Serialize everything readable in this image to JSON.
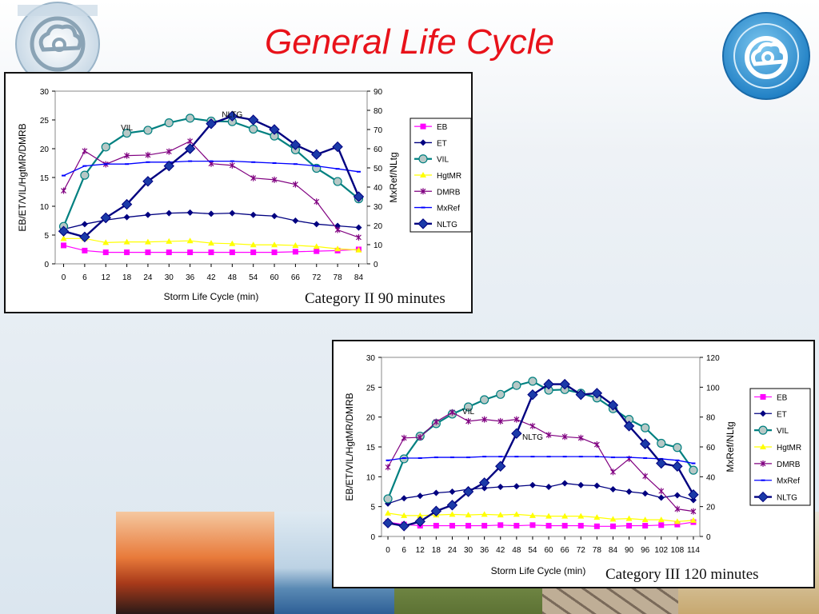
{
  "slide": {
    "title": "General Life Cycle"
  },
  "colors": {
    "title": "#e8121a",
    "EB": "#ff00ff",
    "ET": "#000080",
    "VIL": "#008080",
    "HgtMR": "#ffff00",
    "DMRB": "#800080",
    "MxRef": "#0000ff",
    "NLTG": "#000080"
  },
  "chart_data": [
    {
      "type": "line",
      "title": "Category II 90 minutes",
      "xlabel": "Storm Life Cycle (min)",
      "ylabel": "EB/ET/VIL/HgtMR/DMRB",
      "y2label": "MxRef/NLtg",
      "categories": [
        "0",
        "6",
        "12",
        "18",
        "24",
        "30",
        "36",
        "42",
        "48",
        "54",
        "60",
        "66",
        "72",
        "78",
        "84"
      ],
      "ylim": [
        0,
        30
      ],
      "y2lim": [
        0,
        90
      ],
      "yticks": [
        "0",
        "5",
        "10",
        "15",
        "20",
        "25",
        "30"
      ],
      "y2ticks": [
        "0",
        "10",
        "20",
        "30",
        "40",
        "50",
        "60",
        "70",
        "80",
        "90"
      ],
      "grid": false,
      "legend": "right",
      "annotations": [
        {
          "text": "VIL",
          "x": "18",
          "y": 23.2
        },
        {
          "text": "NLTG",
          "x": "48",
          "y": 25.5
        }
      ],
      "series": [
        {
          "name": "EB",
          "axis": "left",
          "values": [
            3.2,
            2.3,
            2.0,
            2.0,
            2.0,
            2.0,
            2.0,
            2.0,
            2.0,
            2.0,
            2.0,
            2.1,
            2.2,
            2.3,
            2.5
          ]
        },
        {
          "name": "ET",
          "axis": "left",
          "values": [
            6.0,
            6.9,
            7.6,
            8.1,
            8.5,
            8.8,
            8.9,
            8.7,
            8.8,
            8.5,
            8.3,
            7.5,
            6.9,
            6.6,
            6.3
          ]
        },
        {
          "name": "VIL",
          "axis": "left",
          "values": [
            6.5,
            15.4,
            20.3,
            22.7,
            23.2,
            24.5,
            25.3,
            24.8,
            24.7,
            23.4,
            22.2,
            19.8,
            16.6,
            14.3,
            11.3
          ]
        },
        {
          "name": "HgtMR",
          "axis": "left",
          "values": [
            4.4,
            4.4,
            3.7,
            3.8,
            3.8,
            3.9,
            4.0,
            3.6,
            3.5,
            3.3,
            3.3,
            3.2,
            3.0,
            2.6,
            2.4
          ]
        },
        {
          "name": "DMRB",
          "axis": "left",
          "values": [
            12.7,
            19.6,
            17.3,
            18.8,
            18.9,
            19.5,
            21.3,
            17.4,
            17.1,
            14.9,
            14.6,
            13.8,
            10.8,
            5.9,
            4.6
          ]
        },
        {
          "name": "MxRef",
          "axis": "right",
          "values": [
            46,
            51,
            52,
            52,
            53,
            53,
            53.5,
            53.5,
            53.5,
            53,
            52.5,
            52,
            51,
            49.5,
            48
          ]
        },
        {
          "name": "NLTG",
          "axis": "right",
          "values": [
            17,
            14,
            24,
            31,
            43,
            51,
            60,
            73,
            77,
            75,
            70,
            62,
            57,
            61,
            35
          ]
        }
      ]
    },
    {
      "type": "line",
      "title": "Category III 120 minutes",
      "xlabel": "Storm Life Cycle (min)",
      "ylabel": "EB/ET/VIL/HgtMR/DMRB",
      "y2label": "MxRef/NLtg",
      "categories": [
        "0",
        "6",
        "12",
        "18",
        "24",
        "30",
        "36",
        "42",
        "48",
        "54",
        "60",
        "66",
        "72",
        "78",
        "84",
        "90",
        "96",
        "102",
        "108",
        "114"
      ],
      "ylim": [
        0,
        30
      ],
      "y2lim": [
        0,
        120
      ],
      "yticks": [
        "0",
        "5",
        "10",
        "15",
        "20",
        "25",
        "30"
      ],
      "y2ticks": [
        "0",
        "20",
        "40",
        "60",
        "80",
        "100",
        "120"
      ],
      "grid": false,
      "legend": "right",
      "annotations": [
        {
          "text": "VIL",
          "x": "30",
          "y": 20.5
        },
        {
          "text": "NLTG",
          "x": "54",
          "y": 16.2
        }
      ],
      "series": [
        {
          "name": "EB",
          "axis": "left",
          "values": [
            2.4,
            2.0,
            1.8,
            1.8,
            1.8,
            1.8,
            1.8,
            1.9,
            1.8,
            1.9,
            1.8,
            1.8,
            1.8,
            1.7,
            1.7,
            1.8,
            1.8,
            1.9,
            2.0,
            2.4
          ]
        },
        {
          "name": "ET",
          "axis": "left",
          "values": [
            5.5,
            6.4,
            6.8,
            7.3,
            7.5,
            7.9,
            8.1,
            8.3,
            8.4,
            8.6,
            8.3,
            8.9,
            8.6,
            8.5,
            7.9,
            7.5,
            7.2,
            6.5,
            6.9,
            6.1
          ]
        },
        {
          "name": "VIL",
          "axis": "left",
          "values": [
            6.3,
            13.0,
            16.8,
            18.9,
            20.5,
            21.7,
            22.9,
            23.8,
            25.3,
            26.0,
            24.5,
            24.6,
            24.0,
            23.2,
            21.4,
            19.6,
            18.2,
            15.6,
            14.9,
            11.1
          ]
        },
        {
          "name": "HgtMR",
          "axis": "left",
          "values": [
            3.9,
            3.5,
            3.5,
            3.6,
            3.7,
            3.6,
            3.7,
            3.6,
            3.7,
            3.5,
            3.4,
            3.4,
            3.4,
            3.2,
            2.9,
            3.0,
            2.8,
            2.8,
            2.5,
            2.7
          ]
        },
        {
          "name": "DMRB",
          "axis": "left",
          "values": [
            11.6,
            16.5,
            16.6,
            19.2,
            20.8,
            19.3,
            19.6,
            19.3,
            19.6,
            18.5,
            17.0,
            16.7,
            16.5,
            15.4,
            10.8,
            13.0,
            10.1,
            7.6,
            4.6,
            4.2
          ]
        },
        {
          "name": "MxRef",
          "axis": "right",
          "values": [
            51,
            52.5,
            52.5,
            53,
            53,
            53,
            53.5,
            53.5,
            53.5,
            53.5,
            53.5,
            53.5,
            53.5,
            53.5,
            53,
            53,
            52.5,
            52,
            51,
            49
          ]
        },
        {
          "name": "NLTG",
          "axis": "right",
          "values": [
            9,
            7,
            10,
            17,
            21,
            30,
            36,
            47,
            69,
            95,
            102,
            102,
            95,
            96,
            88,
            74,
            62,
            49,
            47,
            28
          ]
        }
      ]
    }
  ]
}
